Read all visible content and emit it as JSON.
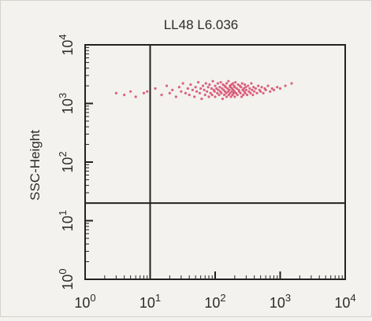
{
  "chart_data": {
    "type": "scatter",
    "title": "LL48 L6.036",
    "xlabel": "",
    "ylabel": "SSC-Height",
    "x_scale": "log",
    "y_scale": "log",
    "xlim": [
      1,
      10000
    ],
    "ylim": [
      1,
      10000
    ],
    "x_ticks": [
      "10^0",
      "10^1",
      "10^2",
      "10^3",
      "10^4"
    ],
    "y_ticks": [
      "10^0",
      "10^1",
      "10^2",
      "10^3",
      "10^4"
    ],
    "gate_lines": {
      "x": 10,
      "y": 20
    },
    "grid": false,
    "legend": "none",
    "point_color": "#d64a6b",
    "series": [
      {
        "points": [
          [
            8,
            1500
          ],
          [
            9,
            1600
          ],
          [
            12,
            1800
          ],
          [
            15,
            1400
          ],
          [
            18,
            2000
          ],
          [
            20,
            1500
          ],
          [
            22,
            1700
          ],
          [
            25,
            1300
          ],
          [
            28,
            1900
          ],
          [
            30,
            1600
          ],
          [
            32,
            2200
          ],
          [
            35,
            1500
          ],
          [
            38,
            1800
          ],
          [
            40,
            1400
          ],
          [
            42,
            2100
          ],
          [
            45,
            1700
          ],
          [
            48,
            1300
          ],
          [
            50,
            1900
          ],
          [
            52,
            1600
          ],
          [
            55,
            2300
          ],
          [
            58,
            1500
          ],
          [
            60,
            1800
          ],
          [
            62,
            1200
          ],
          [
            65,
            2000
          ],
          [
            68,
            1700
          ],
          [
            70,
            1400
          ],
          [
            72,
            2200
          ],
          [
            75,
            1600
          ],
          [
            78,
            1900
          ],
          [
            80,
            1300
          ],
          [
            82,
            2100
          ],
          [
            85,
            1500
          ],
          [
            88,
            1800
          ],
          [
            90,
            1400
          ],
          [
            92,
            2400
          ],
          [
            95,
            1700
          ],
          [
            98,
            1600
          ],
          [
            100,
            2000
          ],
          [
            100,
            1300
          ],
          [
            105,
            1800
          ],
          [
            108,
            1500
          ],
          [
            110,
            2200
          ],
          [
            112,
            1700
          ],
          [
            115,
            1400
          ],
          [
            118,
            1900
          ],
          [
            120,
            1600
          ],
          [
            122,
            2300
          ],
          [
            125,
            1500
          ],
          [
            128,
            1800
          ],
          [
            130,
            1200
          ],
          [
            132,
            2100
          ],
          [
            135,
            1700
          ],
          [
            138,
            1400
          ],
          [
            140,
            2000
          ],
          [
            142,
            1600
          ],
          [
            145,
            1900
          ],
          [
            148,
            1500
          ],
          [
            150,
            2200
          ],
          [
            150,
            1300
          ],
          [
            155,
            1800
          ],
          [
            158,
            1600
          ],
          [
            160,
            2400
          ],
          [
            162,
            1400
          ],
          [
            165,
            1700
          ],
          [
            168,
            2000
          ],
          [
            170,
            1500
          ],
          [
            172,
            1900
          ],
          [
            175,
            1300
          ],
          [
            178,
            2100
          ],
          [
            180,
            1600
          ],
          [
            182,
            1800
          ],
          [
            185,
            1400
          ],
          [
            188,
            2200
          ],
          [
            190,
            1700
          ],
          [
            192,
            1500
          ],
          [
            195,
            2000
          ],
          [
            198,
            1600
          ],
          [
            200,
            1900
          ],
          [
            200,
            1300
          ],
          [
            205,
            2300
          ],
          [
            210,
            1500
          ],
          [
            215,
            1800
          ],
          [
            220,
            1400
          ],
          [
            225,
            2100
          ],
          [
            230,
            1700
          ],
          [
            235,
            1600
          ],
          [
            240,
            2000
          ],
          [
            245,
            1500
          ],
          [
            250,
            1900
          ],
          [
            255,
            1300
          ],
          [
            260,
            2200
          ],
          [
            265,
            1700
          ],
          [
            270,
            1400
          ],
          [
            275,
            1800
          ],
          [
            280,
            1600
          ],
          [
            285,
            2100
          ],
          [
            290,
            1500
          ],
          [
            295,
            1900
          ],
          [
            300,
            1700
          ],
          [
            310,
            1400
          ],
          [
            320,
            2000
          ],
          [
            330,
            1600
          ],
          [
            340,
            1800
          ],
          [
            350,
            1500
          ],
          [
            360,
            2200
          ],
          [
            370,
            1700
          ],
          [
            380,
            1400
          ],
          [
            390,
            1900
          ],
          [
            400,
            1600
          ],
          [
            420,
            1800
          ],
          [
            440,
            1500
          ],
          [
            460,
            2000
          ],
          [
            480,
            1700
          ],
          [
            500,
            1600
          ],
          [
            520,
            1900
          ],
          [
            550,
            1500
          ],
          [
            580,
            1800
          ],
          [
            600,
            1700
          ],
          [
            650,
            2000
          ],
          [
            700,
            1600
          ],
          [
            750,
            1800
          ],
          [
            800,
            1700
          ],
          [
            900,
            1900
          ],
          [
            1000,
            1800
          ],
          [
            1200,
            2000
          ],
          [
            1500,
            2200
          ],
          [
            3,
            1500
          ],
          [
            4,
            1400
          ],
          [
            5,
            1600
          ],
          [
            6,
            1300
          ]
        ]
      }
    ]
  }
}
